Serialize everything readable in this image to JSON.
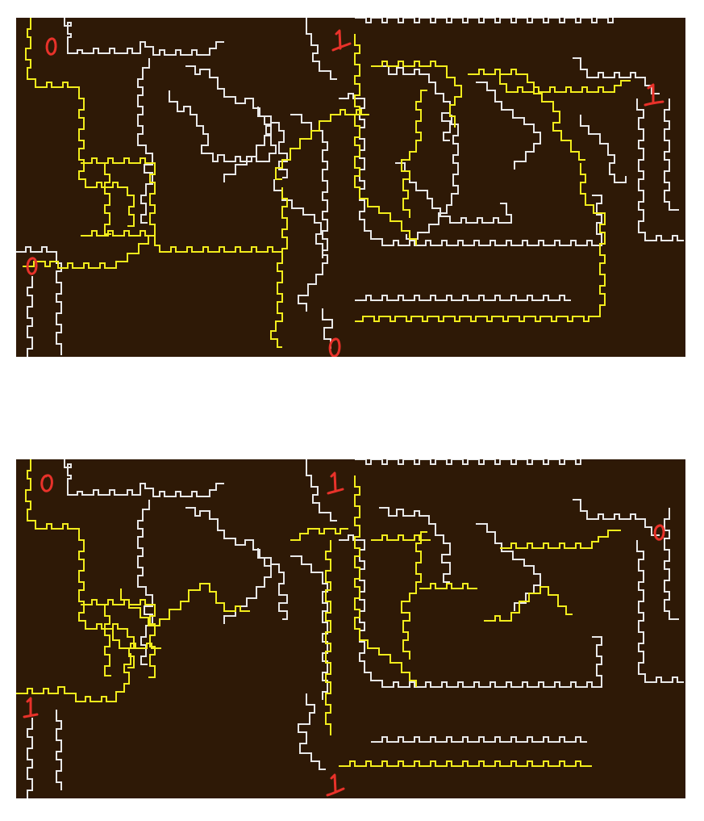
{
  "diagram": {
    "colors": {
      "background": "#2e1906",
      "wire_off": "#e8e8e8",
      "wire_on": "#f2ec1c",
      "label": "#e8322a",
      "page": "#ffffff"
    },
    "panels": [
      {
        "id": "top",
        "labels": {
          "top_left": "0",
          "top_center": "1",
          "right": "1",
          "left_bottom": "0",
          "bottom_center": "0"
        }
      },
      {
        "id": "bottom",
        "labels": {
          "top_left": "0",
          "top_center": "1",
          "right": "0",
          "left_bottom": "1",
          "bottom_center": "1"
        }
      }
    ]
  }
}
